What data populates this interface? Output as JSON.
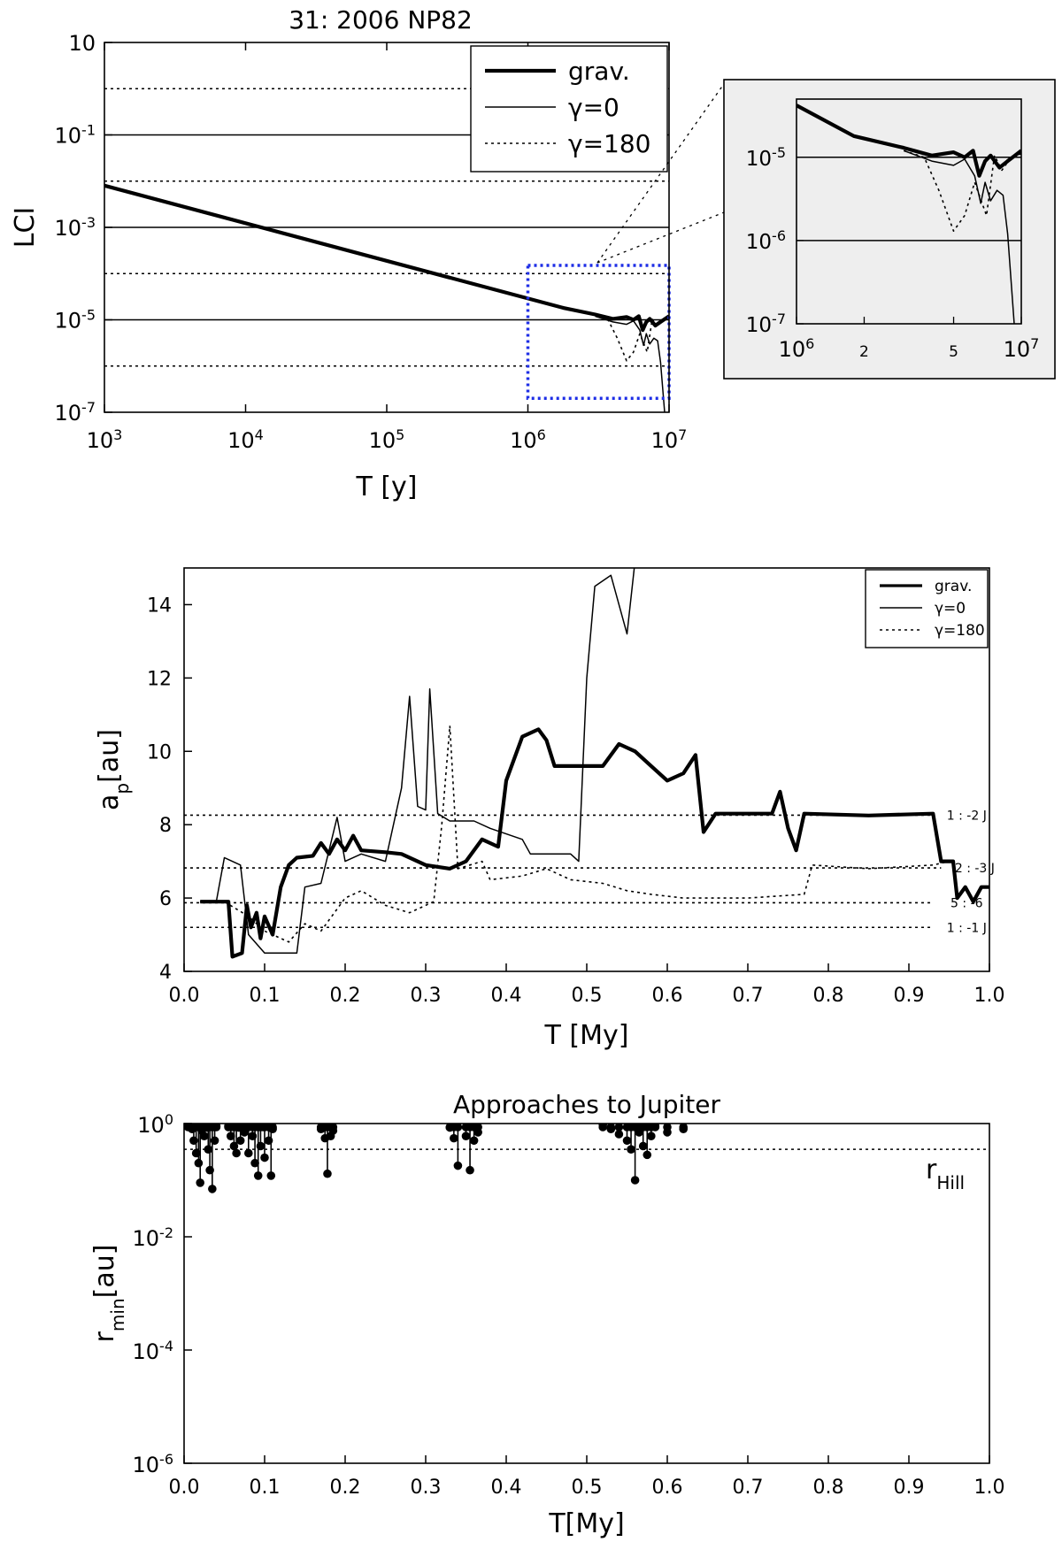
{
  "chart_data": [
    {
      "type": "line",
      "title": "31: 2006 NP82",
      "xlabel": "T [y]",
      "ylabel": "LCI",
      "xscale": "log",
      "yscale": "log",
      "xlim": [
        1000,
        10000000
      ],
      "ylim": [
        1e-07,
        10
      ],
      "x_ticks": [
        {
          "b": "10",
          "e": "3"
        },
        {
          "b": "10",
          "e": "4"
        },
        {
          "b": "10",
          "e": "5"
        },
        {
          "b": "10",
          "e": "6"
        },
        {
          "b": "10",
          "e": "7"
        }
      ],
      "y_ticks": [
        {
          "b": "10",
          "e": "-7"
        },
        {
          "b": "10",
          "e": "-5"
        },
        {
          "b": "10",
          "e": "-3"
        },
        {
          "b": "10",
          "e": "-1"
        },
        {
          "b": "10",
          "e": ""
        }
      ],
      "legend": {
        "position": "top-right",
        "entries": [
          "grav.",
          "γ=0",
          "γ=180"
        ]
      },
      "reference_lines": [
        {
          "y": 1e-05,
          "style": "solid"
        },
        {
          "y": 0.001,
          "style": "solid"
        },
        {
          "y": 0.1,
          "style": "solid"
        },
        {
          "y": 1e-06,
          "style": "dotted"
        },
        {
          "y": 0.0001,
          "style": "dotted"
        },
        {
          "y": 0.01,
          "style": "dotted"
        },
        {
          "y": 1,
          "style": "dotted"
        }
      ],
      "zoom_box": {
        "x": [
          1000000,
          10000000
        ],
        "y": [
          2e-07,
          0.00015
        ],
        "color": "#1e2ee6"
      },
      "series": [
        {
          "name": "grav.",
          "style": "thick",
          "points": [
            [
              1000,
              0.008
            ],
            [
              1800000,
              1.8e-05
            ],
            [
              3000000,
              1.3e-05
            ],
            [
              4000000,
              1.05e-05
            ],
            [
              5000000,
              1.15e-05
            ],
            [
              5600000,
              1e-05
            ],
            [
              6100000,
              1.2e-05
            ],
            [
              6500000,
              6e-06
            ],
            [
              6900000,
              9e-06
            ],
            [
              7300000,
              1.05e-05
            ],
            [
              8000000,
              7.5e-06
            ],
            [
              8700000,
              9e-06
            ],
            [
              10000000,
              1.2e-05
            ]
          ]
        },
        {
          "name": "γ=0",
          "style": "thin",
          "points": [
            [
              3000000,
              1.2e-05
            ],
            [
              4000000,
              9e-06
            ],
            [
              5000000,
              8e-06
            ],
            [
              5600000,
              9.5e-06
            ],
            [
              6200000,
              6e-06
            ],
            [
              6600000,
              2.8e-06
            ],
            [
              6900000,
              5e-06
            ],
            [
              7300000,
              3e-06
            ],
            [
              7800000,
              4e-06
            ],
            [
              8300000,
              3.5e-06
            ],
            [
              8700000,
              1.2e-06
            ],
            [
              9300000,
              1e-07
            ]
          ]
        },
        {
          "name": "γ=180",
          "style": "dotted",
          "points": [
            [
              3000000,
              1.2e-05
            ],
            [
              3700000,
              1e-05
            ],
            [
              4300000,
              4e-06
            ],
            [
              5000000,
              1.3e-06
            ],
            [
              5600000,
              2e-06
            ],
            [
              6200000,
              5e-06
            ],
            [
              7000000,
              2e-06
            ],
            [
              7600000,
              1.05e-05
            ],
            [
              8200000,
              7e-06
            ],
            [
              9000000,
              1e-05
            ],
            [
              10000000,
              1.1e-05
            ]
          ]
        }
      ]
    },
    {
      "type": "line",
      "title": "",
      "inset_of": 0,
      "xscale": "log",
      "yscale": "log",
      "xlim": [
        1000000,
        10000000
      ],
      "ylim": [
        1e-07,
        5e-05
      ],
      "x_ticks": [
        {
          "v": 1000000,
          "b": "10",
          "e": "6"
        },
        {
          "v": 2000000,
          "b": "2",
          "e": ""
        },
        {
          "v": 5000000,
          "b": "5",
          "e": ""
        },
        {
          "v": 10000000,
          "b": "10",
          "e": "7"
        }
      ],
      "y_ticks": [
        {
          "b": "10",
          "e": "-7"
        },
        {
          "b": "10",
          "e": "-6"
        },
        {
          "b": "10",
          "e": "-5"
        }
      ],
      "reference_lines": [
        {
          "y": 1e-05,
          "style": "solid"
        },
        {
          "y": 1e-06,
          "style": "solid"
        }
      ],
      "background": "#eeeeee"
    },
    {
      "type": "line",
      "title": "",
      "xlabel": "T [My]",
      "ylabel": "a",
      "ylabel_sub": "p",
      "ylabel_unit": "[au]",
      "xlim": [
        0,
        1
      ],
      "ylim": [
        4,
        15
      ],
      "x_ticks": [
        "0.0",
        "0.1",
        "0.2",
        "0.3",
        "0.4",
        "0.5",
        "0.6",
        "0.7",
        "0.8",
        "0.9",
        "1.0"
      ],
      "y_ticks": [
        "4",
        "6",
        "8",
        "10",
        "12",
        "14"
      ],
      "legend": {
        "position": "top-right",
        "entries": [
          "grav.",
          "γ=0",
          "γ=180"
        ]
      },
      "resonances": [
        {
          "label": "1 : -2 J",
          "a": 8.26,
          "x_end": 0.93
        },
        {
          "label": "2 : -3 J",
          "a": 6.82,
          "x_end": 0.94
        },
        {
          "label": "5 : -6",
          "a": 5.87,
          "x_end": 0.93
        },
        {
          "label": "1 : -1 J",
          "a": 5.2,
          "x_end": 0.93
        }
      ],
      "series": [
        {
          "name": "grav.",
          "style": "thick",
          "points": [
            [
              0.02,
              5.9
            ],
            [
              0.045,
              5.9
            ],
            [
              0.055,
              5.9
            ],
            [
              0.06,
              4.4
            ],
            [
              0.072,
              4.5
            ],
            [
              0.078,
              5.8
            ],
            [
              0.083,
              5.2
            ],
            [
              0.09,
              5.6
            ],
            [
              0.095,
              4.9
            ],
            [
              0.1,
              5.5
            ],
            [
              0.11,
              5.0
            ],
            [
              0.12,
              6.3
            ],
            [
              0.13,
              6.9
            ],
            [
              0.14,
              7.1
            ],
            [
              0.16,
              7.15
            ],
            [
              0.17,
              7.5
            ],
            [
              0.18,
              7.2
            ],
            [
              0.19,
              7.6
            ],
            [
              0.2,
              7.3
            ],
            [
              0.21,
              7.7
            ],
            [
              0.22,
              7.3
            ],
            [
              0.25,
              7.25
            ],
            [
              0.27,
              7.2
            ],
            [
              0.3,
              6.9
            ],
            [
              0.33,
              6.8
            ],
            [
              0.35,
              7.0
            ],
            [
              0.37,
              7.6
            ],
            [
              0.39,
              7.4
            ],
            [
              0.4,
              9.2
            ],
            [
              0.42,
              10.4
            ],
            [
              0.44,
              10.6
            ],
            [
              0.45,
              10.3
            ],
            [
              0.46,
              9.6
            ],
            [
              0.52,
              9.6
            ],
            [
              0.54,
              10.2
            ],
            [
              0.56,
              10.0
            ],
            [
              0.58,
              9.6
            ],
            [
              0.6,
              9.2
            ],
            [
              0.62,
              9.4
            ],
            [
              0.635,
              9.9
            ],
            [
              0.645,
              7.8
            ],
            [
              0.66,
              8.3
            ],
            [
              0.73,
              8.3
            ],
            [
              0.74,
              8.9
            ],
            [
              0.75,
              7.9
            ],
            [
              0.76,
              7.3
            ],
            [
              0.77,
              8.3
            ],
            [
              0.85,
              8.25
            ],
            [
              0.93,
              8.3
            ],
            [
              0.94,
              7.0
            ],
            [
              0.955,
              7.0
            ],
            [
              0.96,
              6.0
            ],
            [
              0.97,
              6.3
            ],
            [
              0.98,
              5.9
            ],
            [
              0.99,
              6.3
            ],
            [
              1.0,
              6.3
            ]
          ]
        },
        {
          "name": "γ=0",
          "style": "thin",
          "points": [
            [
              0.02,
              5.9
            ],
            [
              0.04,
              5.9
            ],
            [
              0.05,
              7.1
            ],
            [
              0.07,
              6.9
            ],
            [
              0.08,
              5.0
            ],
            [
              0.1,
              4.5
            ],
            [
              0.14,
              4.5
            ],
            [
              0.15,
              6.3
            ],
            [
              0.17,
              6.4
            ],
            [
              0.19,
              8.2
            ],
            [
              0.2,
              7.0
            ],
            [
              0.22,
              7.2
            ],
            [
              0.25,
              7.0
            ],
            [
              0.27,
              9.0
            ],
            [
              0.28,
              11.5
            ],
            [
              0.29,
              8.5
            ],
            [
              0.3,
              8.4
            ],
            [
              0.305,
              11.7
            ],
            [
              0.315,
              8.3
            ],
            [
              0.33,
              8.1
            ],
            [
              0.36,
              8.1
            ],
            [
              0.38,
              7.9
            ],
            [
              0.42,
              7.6
            ],
            [
              0.43,
              7.2
            ],
            [
              0.48,
              7.2
            ],
            [
              0.49,
              7.0
            ],
            [
              0.5,
              12.0
            ],
            [
              0.51,
              14.5
            ],
            [
              0.53,
              14.8
            ],
            [
              0.55,
              13.2
            ],
            [
              0.56,
              15.2
            ]
          ]
        },
        {
          "name": "γ=180",
          "style": "dotted",
          "points": [
            [
              0.02,
              5.9
            ],
            [
              0.05,
              5.9
            ],
            [
              0.08,
              5.5
            ],
            [
              0.1,
              5.1
            ],
            [
              0.13,
              4.8
            ],
            [
              0.15,
              5.3
            ],
            [
              0.17,
              5.1
            ],
            [
              0.2,
              6.0
            ],
            [
              0.22,
              6.2
            ],
            [
              0.25,
              5.8
            ],
            [
              0.28,
              5.6
            ],
            [
              0.31,
              5.9
            ],
            [
              0.32,
              8.0
            ],
            [
              0.33,
              10.7
            ],
            [
              0.34,
              6.8
            ],
            [
              0.37,
              7.0
            ],
            [
              0.38,
              6.5
            ],
            [
              0.42,
              6.6
            ],
            [
              0.45,
              6.8
            ],
            [
              0.48,
              6.5
            ],
            [
              0.52,
              6.4
            ],
            [
              0.55,
              6.2
            ],
            [
              0.58,
              6.1
            ],
            [
              0.62,
              6.0
            ],
            [
              0.7,
              6.0
            ],
            [
              0.77,
              6.1
            ],
            [
              0.78,
              6.9
            ],
            [
              0.85,
              6.8
            ],
            [
              0.93,
              6.9
            ],
            [
              0.95,
              7.0
            ]
          ]
        }
      ]
    },
    {
      "type": "scatter",
      "title": "Approaches to Jupiter",
      "xlabel": "T[My]",
      "ylabel": "r",
      "ylabel_sub": "min",
      "ylabel_unit": "[au]",
      "yscale": "log",
      "xlim": [
        0,
        1
      ],
      "ylim": [
        1e-06,
        1
      ],
      "x_ticks": [
        "0.0",
        "0.1",
        "0.2",
        "0.3",
        "0.4",
        "0.5",
        "0.6",
        "0.7",
        "0.8",
        "0.9",
        "1.0"
      ],
      "y_ticks": [
        {
          "b": "10",
          "e": "-6"
        },
        {
          "b": "10",
          "e": "-4"
        },
        {
          "b": "10",
          "e": "-2"
        },
        {
          "b": "10",
          "e": "0"
        }
      ],
      "hill_radius": {
        "label": "r",
        "label_sub": "Hill",
        "value": 0.35
      },
      "points": [
        [
          0.005,
          0.95
        ],
        [
          0.012,
          0.5
        ],
        [
          0.015,
          0.3
        ],
        [
          0.018,
          0.2
        ],
        [
          0.02,
          0.09
        ],
        [
          0.025,
          0.6
        ],
        [
          0.03,
          0.35
        ],
        [
          0.032,
          0.15
        ],
        [
          0.035,
          0.07
        ],
        [
          0.038,
          0.5
        ],
        [
          0.01,
          0.8
        ],
        [
          0.022,
          0.75
        ],
        [
          0.028,
          0.85
        ],
        [
          0.04,
          0.9
        ],
        [
          0.055,
          0.9
        ],
        [
          0.058,
          0.6
        ],
        [
          0.062,
          0.4
        ],
        [
          0.065,
          0.3
        ],
        [
          0.07,
          0.5
        ],
        [
          0.075,
          0.7
        ],
        [
          0.08,
          0.3
        ],
        [
          0.085,
          0.6
        ],
        [
          0.088,
          0.2
        ],
        [
          0.092,
          0.12
        ],
        [
          0.095,
          0.4
        ],
        [
          0.1,
          0.25
        ],
        [
          0.105,
          0.5
        ],
        [
          0.108,
          0.12
        ],
        [
          0.11,
          0.8
        ],
        [
          0.068,
          0.85
        ],
        [
          0.078,
          0.9
        ],
        [
          0.098,
          0.9
        ],
        [
          0.17,
          0.8
        ],
        [
          0.175,
          0.55
        ],
        [
          0.178,
          0.13
        ],
        [
          0.182,
          0.6
        ],
        [
          0.185,
          0.75
        ],
        [
          0.33,
          0.85
        ],
        [
          0.335,
          0.55
        ],
        [
          0.34,
          0.18
        ],
        [
          0.35,
          0.6
        ],
        [
          0.355,
          0.15
        ],
        [
          0.36,
          0.5
        ],
        [
          0.365,
          0.7
        ],
        [
          0.52,
          0.95
        ],
        [
          0.53,
          0.8
        ],
        [
          0.54,
          0.65
        ],
        [
          0.55,
          0.5
        ],
        [
          0.555,
          0.35
        ],
        [
          0.56,
          0.1
        ],
        [
          0.565,
          0.7
        ],
        [
          0.57,
          0.4
        ],
        [
          0.575,
          0.28
        ],
        [
          0.58,
          0.6
        ],
        [
          0.585,
          0.9
        ],
        [
          0.6,
          0.7
        ],
        [
          0.62,
          0.8
        ]
      ]
    }
  ]
}
